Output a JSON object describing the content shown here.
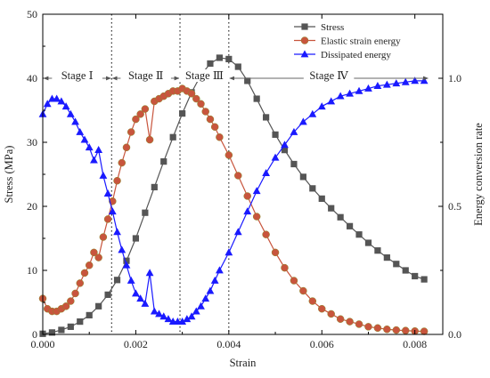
{
  "chart_data": {
    "type": "line",
    "xlabel": "Strain",
    "ylabel_left": "Stress (MPa)",
    "ylabel_right": "Energy conversion rate",
    "xlim": [
      0,
      0.0086
    ],
    "ylim_left": [
      0,
      50
    ],
    "ylim_right": [
      0,
      1.25
    ],
    "x_ticks": [
      0.0,
      0.002,
      0.004,
      0.006,
      0.008
    ],
    "x_tick_labels": [
      "0.000",
      "0.002",
      "0.004",
      "0.006",
      "0.008"
    ],
    "y_left_ticks": [
      0,
      10,
      20,
      30,
      40,
      50
    ],
    "y_left_tick_labels": [
      "0",
      "10",
      "20",
      "30",
      "40",
      "50"
    ],
    "y_right_ticks": [
      0.0,
      0.5,
      1.0
    ],
    "y_right_tick_labels": [
      "0.0",
      "0.5",
      "1.0"
    ],
    "grid": false,
    "legend_position": "top-right",
    "colors": {
      "stress": "#555555",
      "elastic": "#c8553d",
      "dissipated": "#1a1aff",
      "stage_line": "#000000"
    },
    "stage_lines": [
      0.00148,
      0.00295,
      0.004
    ],
    "stages": [
      {
        "label": "Stage Ⅰ",
        "x_start": 0.0,
        "x_end": 0.00148
      },
      {
        "label": "Stage Ⅱ",
        "x_start": 0.00148,
        "x_end": 0.00295
      },
      {
        "label": "Stage Ⅲ",
        "x_start": 0.00295,
        "x_end": 0.004
      },
      {
        "label": "Stage Ⅳ",
        "x_start": 0.004,
        "x_end": 0.0083
      }
    ],
    "stage_arrow_y": 40,
    "series": [
      {
        "name": "Stress",
        "axis": "left",
        "marker": "square",
        "x": [
          0.0,
          0.0002,
          0.0004,
          0.0006,
          0.0008,
          0.001,
          0.0012,
          0.0014,
          0.0016,
          0.0018,
          0.002,
          0.0022,
          0.0024,
          0.0026,
          0.0028,
          0.003,
          0.0032,
          0.0034,
          0.0036,
          0.0038,
          0.004,
          0.0042,
          0.0044,
          0.0046,
          0.0048,
          0.005,
          0.0052,
          0.0054,
          0.0056,
          0.0058,
          0.006,
          0.0062,
          0.0064,
          0.0066,
          0.0068,
          0.007,
          0.0072,
          0.0074,
          0.0076,
          0.0078,
          0.008,
          0.0082
        ],
        "y": [
          0.1,
          0.3,
          0.7,
          1.2,
          2.0,
          3.0,
          4.4,
          6.2,
          8.5,
          11.5,
          15.0,
          19.0,
          23.0,
          27.0,
          30.8,
          34.5,
          37.8,
          40.5,
          42.3,
          43.2,
          43.0,
          41.8,
          39.6,
          36.8,
          33.9,
          31.2,
          28.8,
          26.6,
          24.6,
          22.8,
          21.2,
          19.7,
          18.3,
          16.9,
          15.6,
          14.3,
          13.1,
          12.0,
          11.0,
          10.0,
          9.1,
          8.6
        ]
      },
      {
        "name": "Elastic strain energy",
        "axis": "right",
        "marker": "circle",
        "x": [
          0.0,
          0.0001,
          0.0002,
          0.0003,
          0.0004,
          0.0005,
          0.0006,
          0.0007,
          0.0008,
          0.0009,
          0.001,
          0.0011,
          0.0012,
          0.0013,
          0.0014,
          0.0015,
          0.0016,
          0.0017,
          0.0018,
          0.0019,
          0.002,
          0.0021,
          0.0022,
          0.0023,
          0.0024,
          0.0025,
          0.0026,
          0.0027,
          0.0028,
          0.0029,
          0.003,
          0.0031,
          0.0032,
          0.0033,
          0.0034,
          0.0035,
          0.0036,
          0.0037,
          0.0038,
          0.004,
          0.0042,
          0.0044,
          0.0046,
          0.0048,
          0.005,
          0.0052,
          0.0054,
          0.0056,
          0.0058,
          0.006,
          0.0062,
          0.0064,
          0.0066,
          0.0068,
          0.007,
          0.0072,
          0.0074,
          0.0076,
          0.0078,
          0.008,
          0.0082
        ],
        "y": [
          0.14,
          0.1,
          0.09,
          0.09,
          0.1,
          0.11,
          0.13,
          0.16,
          0.2,
          0.24,
          0.27,
          0.32,
          0.3,
          0.38,
          0.45,
          0.52,
          0.6,
          0.67,
          0.73,
          0.79,
          0.84,
          0.86,
          0.88,
          0.76,
          0.91,
          0.92,
          0.93,
          0.94,
          0.95,
          0.95,
          0.96,
          0.95,
          0.94,
          0.92,
          0.9,
          0.87,
          0.84,
          0.81,
          0.77,
          0.7,
          0.62,
          0.54,
          0.46,
          0.39,
          0.32,
          0.26,
          0.21,
          0.17,
          0.13,
          0.1,
          0.08,
          0.06,
          0.05,
          0.04,
          0.03,
          0.025,
          0.02,
          0.017,
          0.015,
          0.013,
          0.012
        ]
      },
      {
        "name": "Dissipated energy",
        "axis": "right",
        "marker": "triangle",
        "x": [
          0.0,
          0.0001,
          0.0002,
          0.0003,
          0.0004,
          0.0005,
          0.0006,
          0.0007,
          0.0008,
          0.0009,
          0.001,
          0.0011,
          0.0012,
          0.0013,
          0.0014,
          0.0015,
          0.0016,
          0.0017,
          0.0018,
          0.0019,
          0.002,
          0.0021,
          0.0022,
          0.0023,
          0.0024,
          0.0025,
          0.0026,
          0.0027,
          0.0028,
          0.0029,
          0.003,
          0.0031,
          0.0032,
          0.0033,
          0.0034,
          0.0035,
          0.0036,
          0.0037,
          0.0038,
          0.004,
          0.0042,
          0.0044,
          0.0046,
          0.0048,
          0.005,
          0.0052,
          0.0054,
          0.0056,
          0.0058,
          0.006,
          0.0062,
          0.0064,
          0.0066,
          0.0068,
          0.007,
          0.0072,
          0.0074,
          0.0076,
          0.0078,
          0.008,
          0.0082
        ],
        "y": [
          0.86,
          0.9,
          0.92,
          0.92,
          0.91,
          0.89,
          0.86,
          0.83,
          0.79,
          0.76,
          0.73,
          0.68,
          0.72,
          0.62,
          0.55,
          0.48,
          0.4,
          0.33,
          0.27,
          0.21,
          0.16,
          0.14,
          0.12,
          0.24,
          0.09,
          0.08,
          0.07,
          0.06,
          0.05,
          0.05,
          0.05,
          0.06,
          0.07,
          0.09,
          0.11,
          0.14,
          0.17,
          0.21,
          0.25,
          0.32,
          0.4,
          0.48,
          0.56,
          0.63,
          0.69,
          0.74,
          0.79,
          0.83,
          0.86,
          0.89,
          0.91,
          0.93,
          0.94,
          0.95,
          0.96,
          0.97,
          0.975,
          0.98,
          0.985,
          0.99,
          0.99
        ]
      }
    ]
  }
}
